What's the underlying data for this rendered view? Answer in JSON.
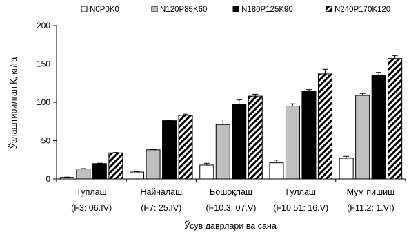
{
  "chart_data": {
    "type": "bar",
    "ylabel": "Ўзлаштирилган К, кг/га",
    "xlabel": "Ўсув даврлари ва сана",
    "ylim": [
      0,
      200
    ],
    "yticks": [
      0,
      50,
      100,
      150,
      200
    ],
    "legend_position": "top",
    "grid": false,
    "categories": [
      {
        "name": "Туплаш",
        "date": "(F3: 06.IV)"
      },
      {
        "name": "Найчалаш",
        "date": "(F7: 25.IV)"
      },
      {
        "name": "Бошоқлаш",
        "date": "(F10.3: 07.V)"
      },
      {
        "name": "Гуллаш",
        "date": "(F10.51: 16.V)"
      },
      {
        "name": "Мум пишиш",
        "date": "(F11.2: 1.VI)"
      }
    ],
    "series": [
      {
        "name": "N0P0K0",
        "fill": "white",
        "values": [
          2,
          9,
          18,
          21,
          27
        ],
        "errors": [
          0.5,
          0.5,
          2.5,
          3.5,
          2.5
        ]
      },
      {
        "name": "N120P85K60",
        "fill": "gray",
        "values": [
          13,
          38,
          71,
          95,
          109
        ],
        "errors": [
          0.5,
          0.5,
          6,
          3,
          2.5
        ]
      },
      {
        "name": "N180P125K90",
        "fill": "black",
        "values": [
          20,
          76,
          97,
          114,
          135
        ],
        "errors": [
          0.5,
          0.5,
          6,
          2.5,
          4
        ]
      },
      {
        "name": "N240P170K120",
        "fill": "hatch",
        "values": [
          34,
          83,
          108,
          137,
          157
        ],
        "errors": [
          0.5,
          1.5,
          2.5,
          6,
          4
        ]
      }
    ]
  }
}
